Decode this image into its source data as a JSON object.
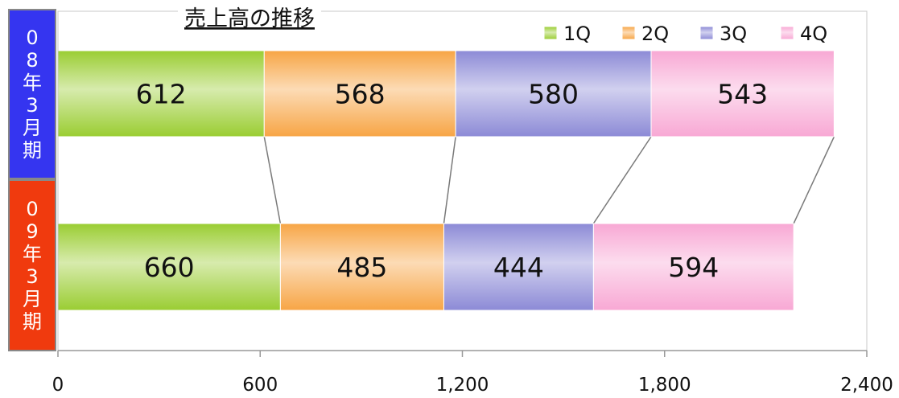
{
  "chart_data": {
    "type": "bar",
    "orientation": "horizontal",
    "stacked": true,
    "title": "売上高の推移",
    "categories": [
      "08年3月期",
      "09年3月期"
    ],
    "category_colors": [
      "#3535f0",
      "#f03a0e"
    ],
    "series": [
      {
        "name": "1Q",
        "values": [
          612,
          660
        ],
        "color": "#9acd32"
      },
      {
        "name": "2Q",
        "values": [
          568,
          485
        ],
        "color": "#f7a545"
      },
      {
        "name": "3Q",
        "values": [
          580,
          444
        ],
        "color": "#8c8ad6"
      },
      {
        "name": "4Q",
        "values": [
          543,
          594
        ],
        "color": "#f8a8d4"
      }
    ],
    "x_ticks": [
      "0",
      "600",
      "1,200",
      "1,800",
      "2,400"
    ],
    "xlim": [
      0,
      2400
    ],
    "grid": false,
    "legend_position": "top-right"
  }
}
